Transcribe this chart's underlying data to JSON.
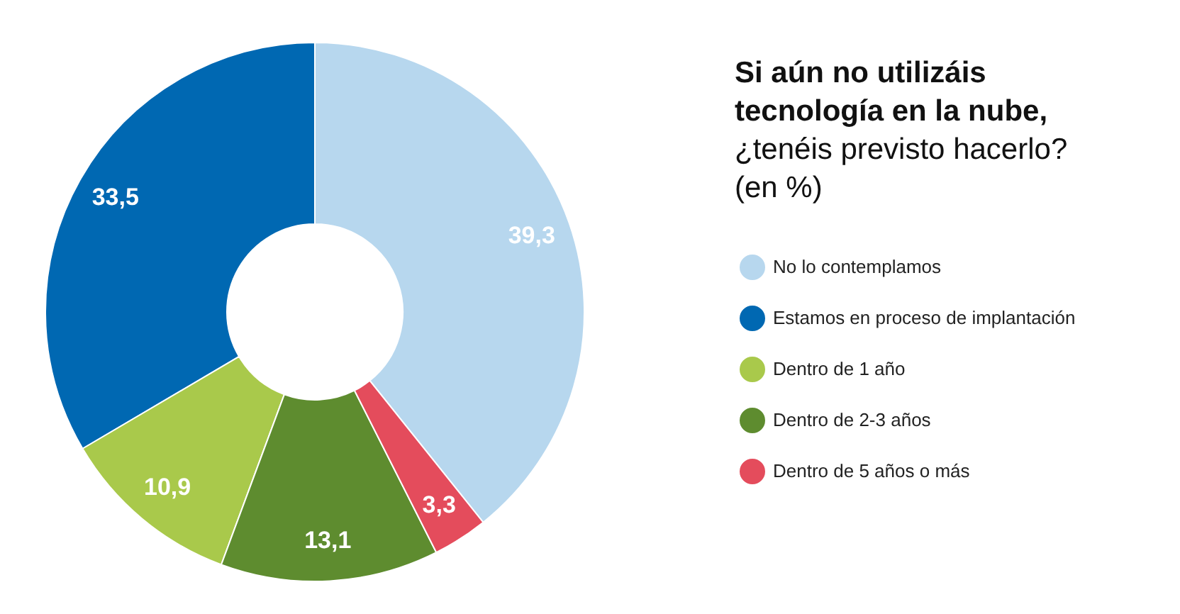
{
  "chart_data": {
    "type": "donut",
    "title": "Si aún no utilizáis tecnología en la nube,",
    "subtitle": "¿tenéis previsto hacerlo? (en %)",
    "categories": [
      "No lo contemplamos",
      "Estamos en proceso de implantación",
      "Dentro de 1 año",
      "Dentro de 2-3 años",
      "Dentro de 5 años o más"
    ],
    "values": [
      39.3,
      33.5,
      10.9,
      13.1,
      3.3
    ],
    "value_labels": [
      "39,3",
      "33,5",
      "10,9",
      "13,1",
      "3,3"
    ],
    "colors": [
      "#b7d7ee",
      "#0068b2",
      "#a9c94b",
      "#5e8c2f",
      "#e44c5c"
    ],
    "legend": "right"
  }
}
